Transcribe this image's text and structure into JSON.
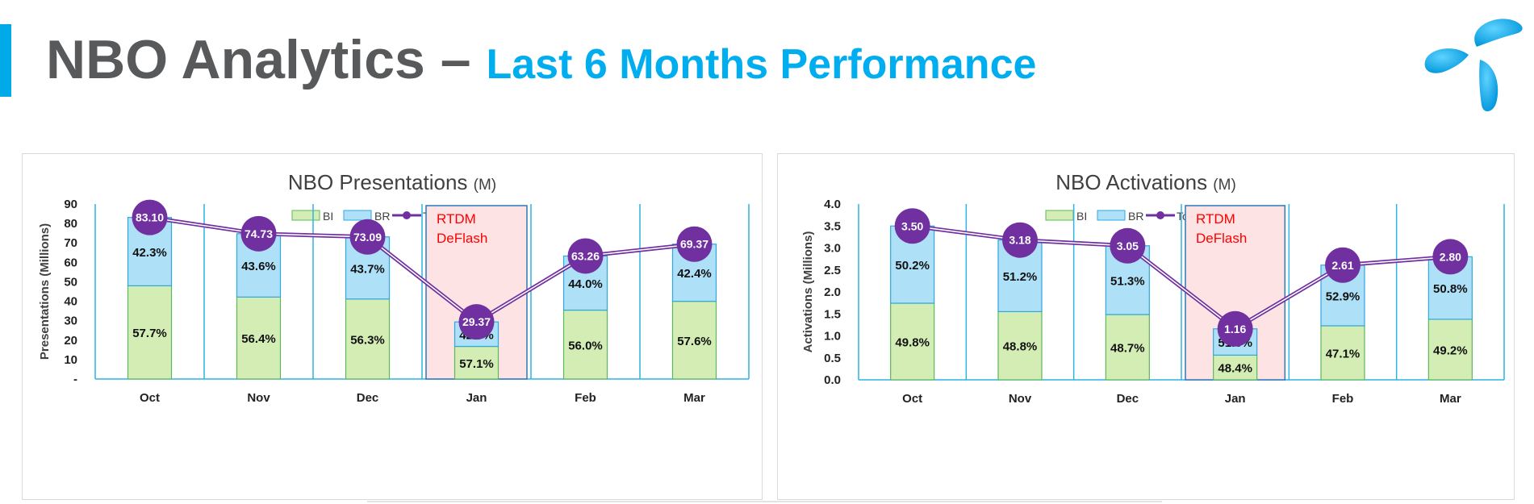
{
  "header": {
    "title_main": "NBO Analytics",
    "title_dash": "–",
    "title_sub": "Last 6 Months Performance",
    "logo_icon": "telenor-logo-icon",
    "accent_color": "#00aeef"
  },
  "legend": {
    "bi": "BI",
    "br": "BR",
    "total": "Total"
  },
  "colors": {
    "bi_fill": "#d4edb5",
    "bi_stroke": "#5cb85c",
    "br_fill": "#aee0f7",
    "br_stroke": "#2fa8e0",
    "total": "#7030a0",
    "gridline": "#2fb4e6",
    "highlight_fill": "#fde3e3",
    "highlight_stroke": "#2f77b8",
    "highlight_text": "#ff0000"
  },
  "chart_data": [
    {
      "type": "bar",
      "stacked": true,
      "title": "NBO Presentations",
      "title_unit": "(M)",
      "ylabel": "Presentations (Millions)",
      "categories": [
        "Oct",
        "Nov",
        "Dec",
        "Jan",
        "Feb",
        "Mar"
      ],
      "ylim": [
        0,
        90
      ],
      "yticks": [
        0,
        10,
        20,
        30,
        40,
        50,
        60,
        70,
        80,
        90
      ],
      "ytick_labels": [
        "-",
        "10",
        "20",
        "30",
        "40",
        "50",
        "60",
        "70",
        "80",
        "90"
      ],
      "series": [
        {
          "name": "BI",
          "share_labels": [
            "57.7%",
            "56.4%",
            "56.3%",
            "57.1%",
            "56.0%",
            "57.6%"
          ]
        },
        {
          "name": "BR",
          "share_labels": [
            "42.3%",
            "43.6%",
            "43.7%",
            "42.9%",
            "44.0%",
            "42.4%"
          ]
        }
      ],
      "total": {
        "name": "Total",
        "values": [
          83.1,
          74.73,
          73.09,
          29.37,
          63.26,
          69.37
        ],
        "labels": [
          "83.10",
          "74.73",
          "73.09",
          "29.37",
          "63.26",
          "69.37"
        ]
      },
      "highlight": {
        "category": "Jan",
        "line1": "RTDM",
        "line2": "DeFlash"
      },
      "legend_position": "top"
    },
    {
      "type": "bar",
      "stacked": true,
      "title": "NBO Activations",
      "title_unit": "(M)",
      "ylabel": "Activations (Millions)",
      "categories": [
        "Oct",
        "Nov",
        "Dec",
        "Jan",
        "Feb",
        "Mar"
      ],
      "ylim": [
        0,
        4
      ],
      "yticks": [
        0,
        0.5,
        1,
        1.5,
        2,
        2.5,
        3,
        3.5,
        4
      ],
      "ytick_labels": [
        "0.0",
        "0.5",
        "1.0",
        "1.5",
        "2.0",
        "2.5",
        "3.0",
        "3.5",
        "4.0"
      ],
      "series": [
        {
          "name": "BI",
          "share_labels": [
            "49.8%",
            "48.8%",
            "48.7%",
            "48.4%",
            "47.1%",
            "49.2%"
          ]
        },
        {
          "name": "BR",
          "share_labels": [
            "50.2%",
            "51.2%",
            "51.3%",
            "51.6%",
            "52.9%",
            "50.8%"
          ]
        }
      ],
      "total": {
        "name": "Total",
        "values": [
          3.5,
          3.18,
          3.05,
          1.16,
          2.61,
          2.8
        ],
        "labels": [
          "3.50",
          "3.18",
          "3.05",
          "1.16",
          "2.61",
          "2.80"
        ]
      },
      "highlight": {
        "category": "Jan",
        "line1": "RTDM",
        "line2": "DeFlash"
      },
      "legend_position": "top"
    }
  ]
}
